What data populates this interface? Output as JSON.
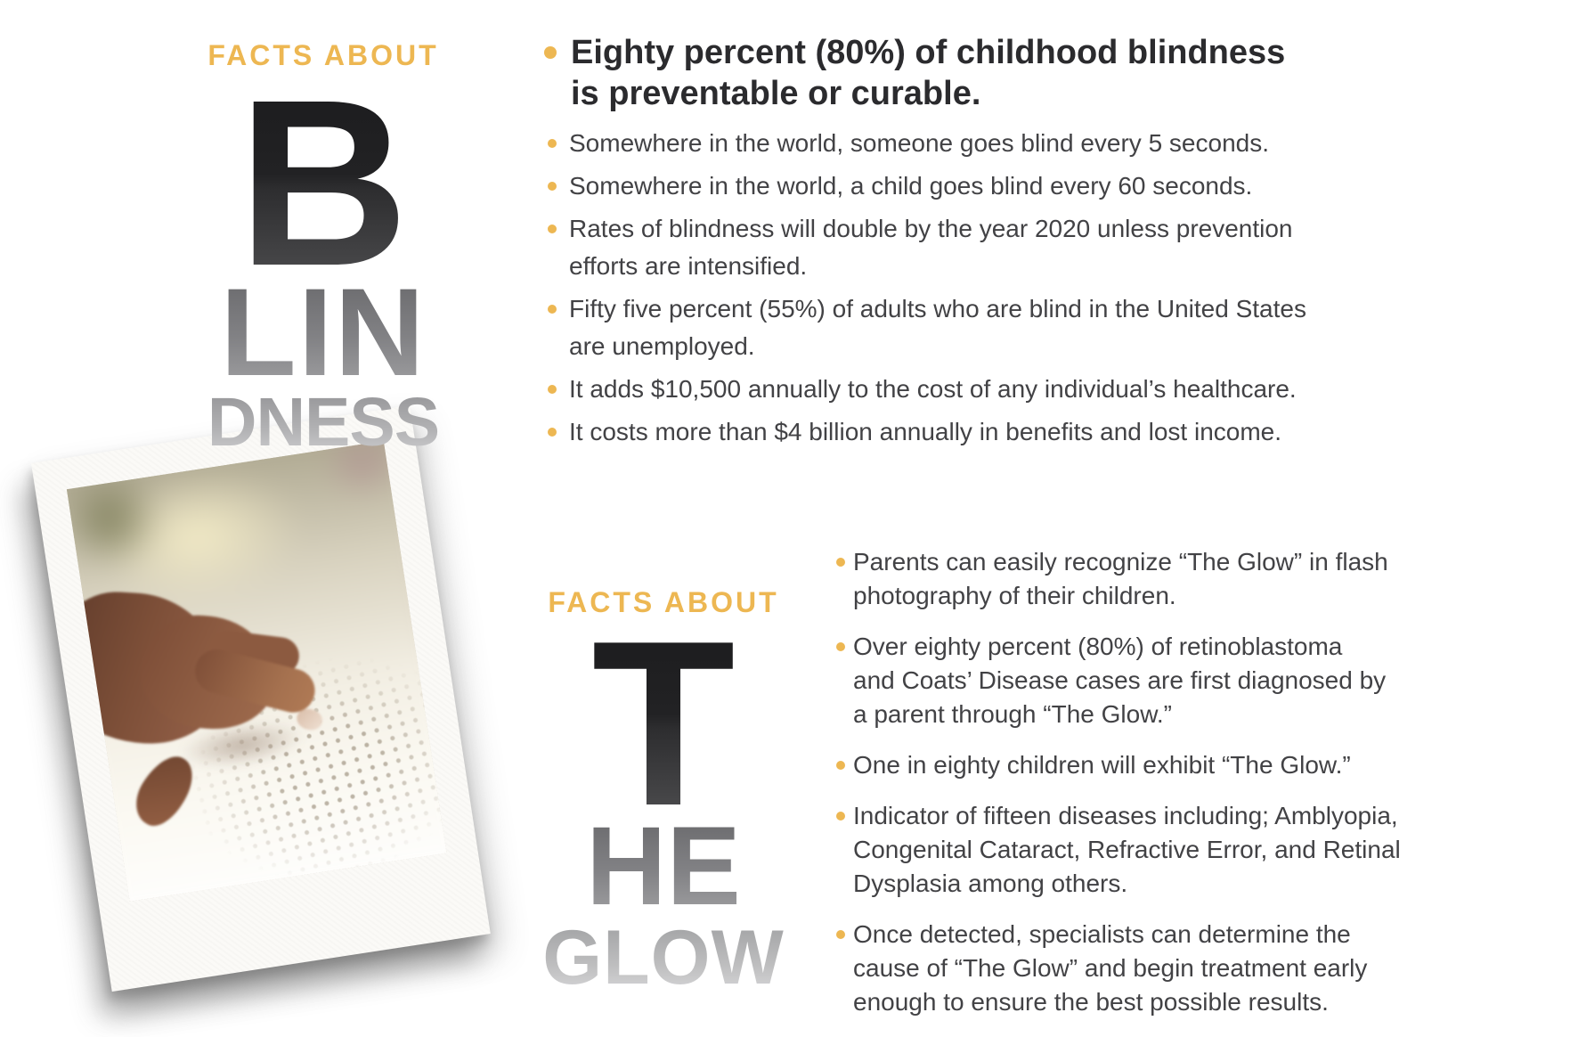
{
  "colors": {
    "accent_gold": "#EDB752",
    "lead_text": "#2B2B2E",
    "body_text": "#424245",
    "wordmark_dark": "#1B1B1D",
    "wordmark_mid": "#8A8A8D",
    "wordmark_light": "#C9C9CB"
  },
  "sections": {
    "blindness": {
      "eyebrow": "FACTS ABOUT",
      "word_parts": [
        "B",
        "LIN",
        "DNESS"
      ],
      "lead_bullet": {
        "lines": [
          "Eighty percent (80%) of childhood blindness",
          "is preventable or curable."
        ]
      },
      "bullets": [
        {
          "lines": [
            "Somewhere in the world, someone goes blind every 5 seconds."
          ]
        },
        {
          "lines": [
            "Somewhere in the world, a child goes blind every 60 seconds."
          ]
        },
        {
          "lines": [
            "Rates of blindness will double by the year 2020 unless prevention",
            "efforts are intensified."
          ]
        },
        {
          "lines": [
            "Fifty five percent (55%) of adults who are blind in the United States",
            "are unemployed."
          ]
        },
        {
          "lines": [
            "It adds $10,500 annually to the cost of any individual’s healthcare."
          ]
        },
        {
          "lines": [
            "It costs more than $4 billion annually in benefits and lost income."
          ]
        }
      ]
    },
    "glow": {
      "eyebrow": "FACTS ABOUT",
      "word_parts": [
        "T",
        "HE",
        "GLOW"
      ],
      "bullets": [
        {
          "lines": [
            "Parents can easily recognize “The Glow” in flash",
            "photography of their children."
          ]
        },
        {
          "lines": [
            "Over eighty percent (80%) of retinoblastoma",
            "and Coats’ Disease cases are first diagnosed by",
            "a parent through “The Glow.”"
          ]
        },
        {
          "lines": [
            "One in eighty children will exhibit “The Glow.”"
          ]
        },
        {
          "lines": [
            "Indicator of fifteen diseases including; Amblyopia,",
            "Congenital Cataract, Refractive Error, and Retinal",
            "Dysplasia among others."
          ]
        },
        {
          "lines": [
            "Once detected, specialists can determine the",
            "cause of “The Glow” and begin treatment early",
            "enough to ensure the best possible results."
          ]
        }
      ]
    },
    "photo": {
      "description": "hand reading braille"
    }
  }
}
